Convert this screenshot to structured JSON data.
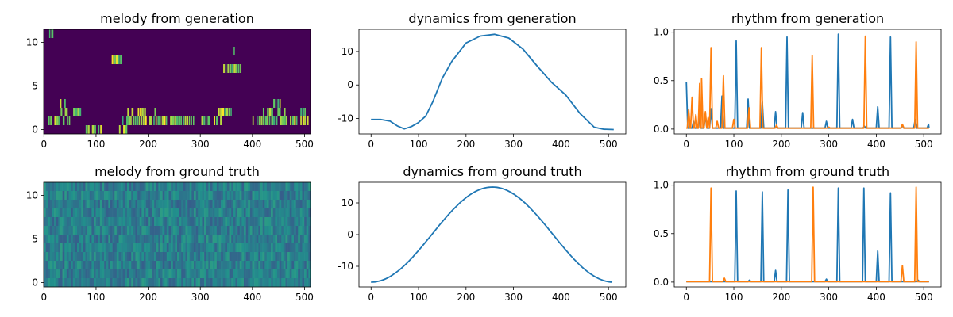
{
  "chart_data": [
    {
      "type": "heatmap",
      "title": "melody from generation",
      "xlim": [
        -0.5,
        511.5
      ],
      "ylim": [
        -0.5,
        11.5
      ],
      "xticks": [
        0,
        100,
        200,
        300,
        400,
        500
      ],
      "yticks": [
        0,
        5,
        10
      ],
      "colormap": "viridis",
      "rows": 12,
      "active_segments": [
        {
          "row": 0,
          "x0": 80,
          "x1": 110
        },
        {
          "row": 0,
          "x0": 140,
          "x1": 160
        },
        {
          "row": 1,
          "x0": 0,
          "x1": 60
        },
        {
          "row": 1,
          "x0": 150,
          "x1": 340
        },
        {
          "row": 1,
          "x0": 400,
          "x1": 511
        },
        {
          "row": 2,
          "x0": 20,
          "x1": 70
        },
        {
          "row": 2,
          "x0": 160,
          "x1": 220
        },
        {
          "row": 2,
          "x0": 330,
          "x1": 360
        },
        {
          "row": 2,
          "x0": 420,
          "x1": 511
        },
        {
          "row": 3,
          "x0": 30,
          "x1": 50
        },
        {
          "row": 3,
          "x0": 440,
          "x1": 460
        },
        {
          "row": 7,
          "x0": 340,
          "x1": 380
        },
        {
          "row": 8,
          "x0": 130,
          "x1": 150
        },
        {
          "row": 9,
          "x0": 360,
          "x1": 370
        },
        {
          "row": 11,
          "x0": 10,
          "x1": 20
        }
      ]
    },
    {
      "type": "line",
      "title": "dynamics from generation",
      "xlim": [
        -25.5,
        536.5
      ],
      "ylim": [
        -14.6,
        16.6
      ],
      "xticks": [
        0,
        100,
        200,
        300,
        400,
        500
      ],
      "yticks": [
        -10,
        0,
        10
      ],
      "series": [
        {
          "color": "#1f77b4",
          "x": [
            0,
            20,
            40,
            55,
            70,
            85,
            100,
            115,
            130,
            150,
            170,
            200,
            230,
            260,
            290,
            320,
            350,
            380,
            410,
            440,
            470,
            490,
            511
          ],
          "y": [
            -10.3,
            -10.3,
            -10.8,
            -12.2,
            -13.1,
            -12.4,
            -11.2,
            -9.3,
            -5.0,
            2.0,
            7.0,
            12.5,
            14.6,
            15.1,
            14.0,
            10.7,
            5.6,
            0.8,
            -3.0,
            -8.5,
            -12.6,
            -13.2,
            -13.3
          ]
        }
      ]
    },
    {
      "type": "line",
      "title": "rhythm from generation",
      "xlim": [
        -25.5,
        536.5
      ],
      "ylim": [
        -0.05,
        1.03
      ],
      "xticks": [
        0,
        100,
        200,
        300,
        400,
        500
      ],
      "yticks": [
        0.0,
        0.5,
        1.0
      ],
      "series": [
        {
          "color": "#1f77b4",
          "baseline": 0.01,
          "peaks": [
            [
              0,
              0.49
            ],
            [
              15,
              0.08
            ],
            [
              28,
              0.12
            ],
            [
              40,
              0.15
            ],
            [
              52,
              0.21
            ],
            [
              75,
              0.34
            ],
            [
              105,
              0.91
            ],
            [
              130,
              0.31
            ],
            [
              160,
              0.28
            ],
            [
              188,
              0.18
            ],
            [
              212,
              0.95
            ],
            [
              245,
              0.17
            ],
            [
              295,
              0.08
            ],
            [
              320,
              0.98
            ],
            [
              350,
              0.1
            ],
            [
              375,
              0.03
            ],
            [
              403,
              0.23
            ],
            [
              430,
              0.95
            ],
            [
              455,
              0.04
            ],
            [
              482,
              0.1
            ],
            [
              510,
              0.05
            ]
          ]
        },
        {
          "color": "#ff7f0e",
          "baseline": 0.01,
          "peaks": [
            [
              5,
              0.2
            ],
            [
              12,
              0.33
            ],
            [
              20,
              0.15
            ],
            [
              28,
              0.47
            ],
            [
              32,
              0.52
            ],
            [
              40,
              0.18
            ],
            [
              46,
              0.12
            ],
            [
              52,
              0.84
            ],
            [
              65,
              0.08
            ],
            [
              78,
              0.55
            ],
            [
              100,
              0.1
            ],
            [
              132,
              0.22
            ],
            [
              158,
              0.84
            ],
            [
              190,
              0.04
            ],
            [
              265,
              0.76
            ],
            [
              300,
              0.02
            ],
            [
              377,
              0.96
            ],
            [
              455,
              0.05
            ],
            [
              484,
              0.9
            ]
          ]
        }
      ]
    },
    {
      "type": "heatmap",
      "title": "melody from ground truth",
      "xlim": [
        -0.5,
        511.5
      ],
      "ylim": [
        -0.5,
        11.5
      ],
      "xticks": [
        0,
        100,
        200,
        300,
        400,
        500
      ],
      "yticks": [
        0,
        5,
        10
      ],
      "colormap": "viridis",
      "rows": 12,
      "fill": "uniform noise around 0.4"
    },
    {
      "type": "line",
      "title": "dynamics from ground truth",
      "xlim": [
        -25.5,
        536.5
      ],
      "ylim": [
        -16.5,
        16.5
      ],
      "xticks": [
        0,
        100,
        200,
        300,
        400,
        500
      ],
      "yticks": [
        -10,
        0,
        10
      ],
      "series": [
        {
          "color": "#1f77b4",
          "function": "cosine",
          "min": -15,
          "max": 15,
          "period": 511
        }
      ]
    },
    {
      "type": "line",
      "title": "rhythm from ground truth",
      "xlim": [
        -25.5,
        536.5
      ],
      "ylim": [
        -0.05,
        1.03
      ],
      "xticks": [
        0,
        100,
        200,
        300,
        400,
        500
      ],
      "yticks": [
        0.0,
        0.5,
        1.0
      ],
      "series": [
        {
          "color": "#1f77b4",
          "baseline": 0.005,
          "peaks": [
            [
              105,
              0.94
            ],
            [
              133,
              0.02
            ],
            [
              160,
              0.93
            ],
            [
              188,
              0.12
            ],
            [
              214,
              0.95
            ],
            [
              295,
              0.03
            ],
            [
              320,
              0.97
            ],
            [
              374,
              0.97
            ],
            [
              403,
              0.32
            ],
            [
              430,
              0.92
            ],
            [
              488,
              0.02
            ]
          ]
        },
        {
          "color": "#ff7f0e",
          "baseline": 0.005,
          "peaks": [
            [
              52,
              0.97
            ],
            [
              80,
              0.04
            ],
            [
              267,
              0.98
            ],
            [
              455,
              0.17
            ],
            [
              484,
              0.98
            ]
          ]
        }
      ]
    }
  ]
}
